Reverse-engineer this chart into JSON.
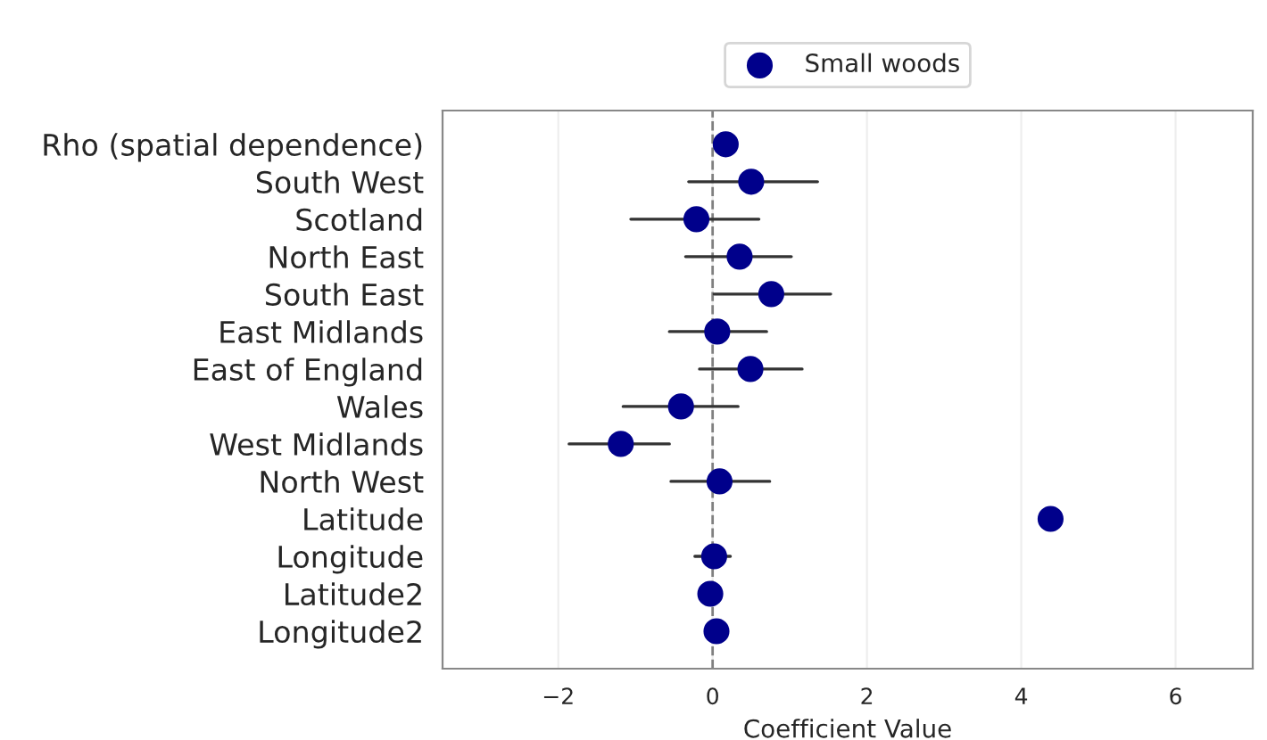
{
  "chart_data": {
    "type": "scatter",
    "orientation": "horizontal",
    "xlabel": "Coefficient Value",
    "categories": [
      "Rho (spatial dependence)",
      "South West",
      "Scotland",
      "North East",
      "South East",
      "East Midlands",
      "East of England",
      "Wales",
      "West Midlands",
      "North West",
      "Latitude",
      "Longitude",
      "Latitude2",
      "Longitude2"
    ],
    "series": [
      {
        "name": "Small woods",
        "color": "#00008b",
        "values": [
          0.17,
          0.5,
          -0.21,
          0.35,
          0.76,
          0.06,
          0.49,
          -0.41,
          -1.19,
          0.09,
          4.38,
          0.02,
          -0.03,
          0.05
        ],
        "errors": [
          null,
          [
            -0.31,
            1.36
          ],
          [
            -1.06,
            0.6
          ],
          [
            -0.35,
            1.02
          ],
          [
            0.02,
            1.53
          ],
          [
            -0.56,
            0.7
          ],
          [
            -0.17,
            1.16
          ],
          [
            -1.16,
            0.33
          ],
          [
            -1.86,
            -0.56
          ],
          [
            -0.54,
            0.74
          ],
          null,
          [
            -0.23,
            0.23
          ],
          null,
          null
        ]
      }
    ],
    "xlim": [
      -3.5,
      7
    ],
    "xticks": [
      {
        "value": -2,
        "label": "−2"
      },
      0,
      2,
      4,
      6
    ],
    "ref_lines": [
      {
        "axis": "x",
        "value": 0,
        "color": "#808080",
        "line_style": "dashed"
      }
    ],
    "grid": "x",
    "legend": "top",
    "marker": "circle"
  }
}
